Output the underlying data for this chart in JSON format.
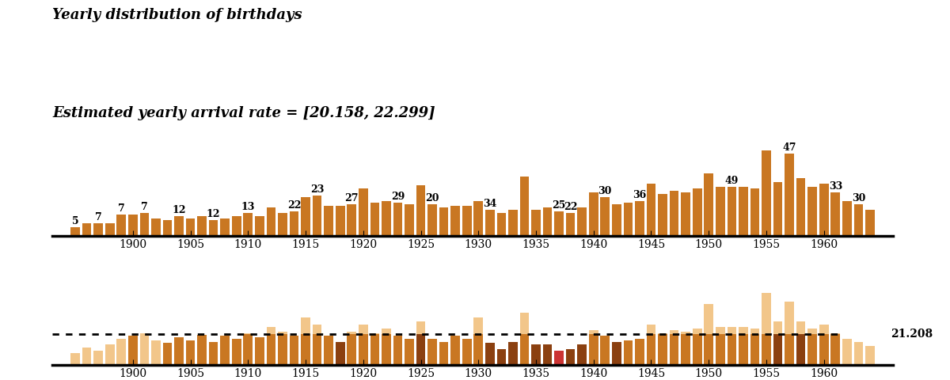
{
  "title1": "Yearly distribution of birthdays",
  "title2": "Estimated yearly arrival rate = [20.158, 22.299]",
  "mean_rate": 21.208,
  "mean_label": "21.208",
  "years": [
    1895,
    1896,
    1897,
    1898,
    1899,
    1900,
    1901,
    1902,
    1903,
    1904,
    1905,
    1906,
    1907,
    1908,
    1909,
    1910,
    1911,
    1912,
    1913,
    1914,
    1915,
    1916,
    1917,
    1918,
    1919,
    1920,
    1921,
    1922,
    1923,
    1924,
    1925,
    1926,
    1927,
    1928,
    1929,
    1930,
    1931,
    1932,
    1933,
    1934,
    1935,
    1936,
    1937,
    1938,
    1939,
    1940,
    1941,
    1942,
    1943,
    1944,
    1945,
    1946,
    1947,
    1948,
    1949,
    1950,
    1951,
    1952,
    1953,
    1954,
    1955,
    1956,
    1957,
    1958,
    1959,
    1960,
    1961,
    1962,
    1963,
    1964
  ],
  "counts": [
    5,
    7,
    7,
    7,
    12,
    12,
    13,
    10,
    9,
    11,
    10,
    11,
    9,
    10,
    11,
    13,
    11,
    16,
    13,
    14,
    22,
    23,
    17,
    17,
    18,
    27,
    19,
    20,
    19,
    18,
    29,
    18,
    16,
    17,
    17,
    20,
    15,
    13,
    15,
    34,
    15,
    16,
    14,
    13,
    16,
    25,
    22,
    18,
    19,
    20,
    30,
    24,
    26,
    25,
    27,
    36,
    28,
    28,
    28,
    27,
    49,
    31,
    47,
    33,
    28,
    30,
    25,
    20,
    18,
    15
  ],
  "peak_labels": {
    "1895": 5,
    "1897": 7,
    "1899": 7,
    "1901": 7,
    "1904": 12,
    "1907": 12,
    "1910": 13,
    "1914": 22,
    "1916": 23,
    "1919": 27,
    "1923": 29,
    "1926": 20,
    "1931": 34,
    "1937": 25,
    "1938": 22,
    "1941": 30,
    "1944": 36,
    "1952": 49,
    "1957": 47,
    "1961": 33,
    "1963": 30
  },
  "bar_color_top": "#C97722",
  "bar_color_light": "#F2C68A",
  "bar_color_dark": "#8B4010",
  "bar_color_mid": "#C97722",
  "bar_color_red": "#CC3333",
  "background_color": "#FFFFFF",
  "xtick_positions": [
    1900,
    1905,
    1910,
    1915,
    1920,
    1925,
    1930,
    1935,
    1940,
    1945,
    1950,
    1955,
    1960
  ],
  "font_family": "DejaVu Serif",
  "title_fontsize": 13,
  "bottom_vals": [
    8,
    12,
    10,
    14,
    18,
    20,
    22,
    17,
    15,
    19,
    17,
    21,
    16,
    20,
    18,
    22,
    19,
    26,
    23,
    20,
    33,
    28,
    20,
    16,
    23,
    28,
    22,
    25,
    20,
    18,
    30,
    18,
    16,
    20,
    18,
    33,
    15,
    11,
    16,
    36,
    14,
    14,
    10,
    11,
    14,
    24,
    20,
    16,
    17,
    18,
    28,
    22,
    24,
    23,
    25,
    42,
    26,
    26,
    26,
    25,
    50,
    30,
    44,
    30,
    25,
    28,
    22,
    18,
    16,
    13
  ],
  "bottom_colors": [
    "light",
    "light",
    "light",
    "light",
    "light",
    "mid",
    "light",
    "light",
    "mid",
    "mid",
    "mid",
    "mid",
    "mid",
    "mid",
    "mid",
    "mid",
    "mid",
    "mid",
    "mid",
    "mid",
    "mid",
    "mid",
    "mid",
    "dark",
    "mid",
    "mid",
    "mid",
    "mid",
    "mid",
    "mid",
    "dark",
    "mid",
    "mid",
    "mid",
    "mid",
    "mid",
    "dark",
    "dark",
    "dark",
    "mid",
    "dark",
    "dark",
    "mid",
    "dark",
    "dark",
    "mid",
    "mid",
    "dark",
    "mid",
    "mid",
    "mid",
    "mid",
    "mid",
    "mid",
    "mid",
    "mid",
    "mid",
    "mid",
    "mid",
    "mid",
    "mid",
    "dark",
    "mid",
    "dark",
    "mid",
    "mid",
    "mid",
    "light",
    "light",
    "light"
  ],
  "ylim1_top": 70,
  "ylim2_top": 58
}
